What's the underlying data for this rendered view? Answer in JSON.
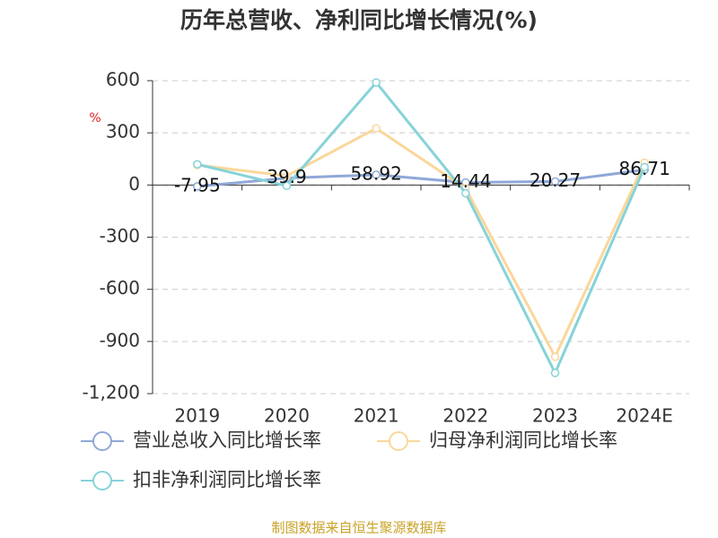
{
  "chart_data": {
    "type": "line",
    "title": "历年总营收、净利同比增长情况(%)",
    "y_label": "%",
    "categories": [
      "2019",
      "2020",
      "2021",
      "2022",
      "2023",
      "2024E"
    ],
    "series": [
      {
        "name": "营业总收入同比增长率",
        "color": "#8fa8d8",
        "values": [
          -7.95,
          39.9,
          58.92,
          14.44,
          20.27,
          86.71
        ],
        "value_labels": [
          "-7.95",
          "39.9",
          "58.92",
          "14.44",
          "20.27",
          "86.71"
        ]
      },
      {
        "name": "归母净利润同比增长率",
        "color": "#fad79a",
        "values": [
          115,
          52,
          326,
          -20,
          -988,
          129
        ]
      },
      {
        "name": "扣非净利润同比增长率",
        "color": "#86d3d8",
        "values": [
          119,
          -5,
          590,
          -47,
          -1081,
          103
        ]
      }
    ],
    "ylim": [
      -1200,
      600
    ],
    "yticks": [
      600,
      300,
      0,
      -300,
      -600,
      -900,
      {
        "value": -1200,
        "label": "-1,200"
      }
    ],
    "grid": true,
    "source": "制图数据来自恒生聚源数据库"
  }
}
